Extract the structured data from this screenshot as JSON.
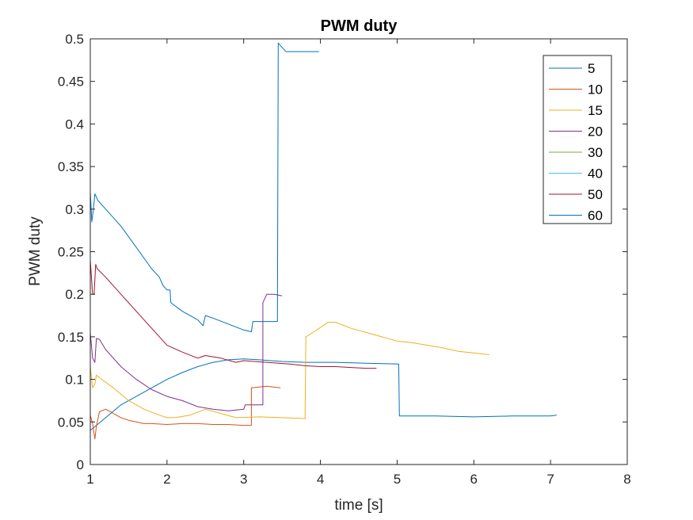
{
  "chart_data": {
    "type": "line",
    "title": "PWM duty",
    "xlabel": "time [s]",
    "ylabel": "PWM duty",
    "xlim": [
      1,
      8
    ],
    "ylim": [
      0,
      0.5
    ],
    "xticks": [
      1,
      2,
      3,
      4,
      5,
      6,
      7,
      8
    ],
    "xtick_labels": [
      "1",
      "2",
      "3",
      "4",
      "5",
      "6",
      "7",
      "8"
    ],
    "yticks": [
      0,
      0.05,
      0.1,
      0.15,
      0.2,
      0.25,
      0.3,
      0.35,
      0.4,
      0.45,
      0.5
    ],
    "ytick_labels": [
      "0",
      "0.05",
      "0.1",
      "0.15",
      "0.2",
      "0.25",
      "0.3",
      "0.35",
      "0.4",
      "0.45",
      "0.5"
    ],
    "grid": false,
    "legend_position": "top-right",
    "series": [
      {
        "name": "5",
        "color": "#0072BD",
        "points": [
          [
            1.0,
            0.04
          ],
          [
            1.2,
            0.055
          ],
          [
            1.4,
            0.07
          ],
          [
            1.6,
            0.08
          ],
          [
            1.8,
            0.09
          ],
          [
            2.0,
            0.1
          ],
          [
            2.2,
            0.108
          ],
          [
            2.4,
            0.115
          ],
          [
            2.6,
            0.12
          ],
          [
            2.8,
            0.123
          ],
          [
            3.0,
            0.124
          ],
          [
            3.2,
            0.123
          ],
          [
            3.5,
            0.121
          ],
          [
            3.8,
            0.12
          ],
          [
            4.2,
            0.12
          ],
          [
            4.6,
            0.119
          ],
          [
            5.02,
            0.118
          ],
          [
            5.03,
            0.057
          ],
          [
            5.5,
            0.057
          ],
          [
            6.0,
            0.056
          ],
          [
            6.5,
            0.057
          ],
          [
            7.0,
            0.057
          ],
          [
            7.08,
            0.058
          ]
        ]
      },
      {
        "name": "10",
        "color": "#D95319",
        "points": [
          [
            1.0,
            0.058
          ],
          [
            1.03,
            0.048
          ],
          [
            1.06,
            0.03
          ],
          [
            1.08,
            0.045
          ],
          [
            1.12,
            0.062
          ],
          [
            1.2,
            0.065
          ],
          [
            1.3,
            0.06
          ],
          [
            1.4,
            0.055
          ],
          [
            1.5,
            0.052
          ],
          [
            1.6,
            0.05
          ],
          [
            1.7,
            0.048
          ],
          [
            1.8,
            0.048
          ],
          [
            2.0,
            0.047
          ],
          [
            2.2,
            0.048
          ],
          [
            2.4,
            0.048
          ],
          [
            2.6,
            0.047
          ],
          [
            2.8,
            0.047
          ],
          [
            3.0,
            0.046
          ],
          [
            3.1,
            0.046
          ],
          [
            3.1,
            0.09
          ],
          [
            3.3,
            0.092
          ],
          [
            3.48,
            0.09
          ]
        ]
      },
      {
        "name": "15",
        "color": "#EDB120",
        "points": [
          [
            1.0,
            0.115
          ],
          [
            1.03,
            0.09
          ],
          [
            1.06,
            0.095
          ],
          [
            1.08,
            0.105
          ],
          [
            1.15,
            0.1
          ],
          [
            1.3,
            0.09
          ],
          [
            1.5,
            0.075
          ],
          [
            1.7,
            0.065
          ],
          [
            1.9,
            0.058
          ],
          [
            2.0,
            0.055
          ],
          [
            2.1,
            0.055
          ],
          [
            2.3,
            0.058
          ],
          [
            2.5,
            0.065
          ],
          [
            2.7,
            0.06
          ],
          [
            2.9,
            0.055
          ],
          [
            3.2,
            0.056
          ],
          [
            3.5,
            0.055
          ],
          [
            3.8,
            0.054
          ],
          [
            3.81,
            0.15
          ],
          [
            3.9,
            0.155
          ],
          [
            4.1,
            0.167
          ],
          [
            4.2,
            0.167
          ],
          [
            4.4,
            0.16
          ],
          [
            4.6,
            0.155
          ],
          [
            4.8,
            0.15
          ],
          [
            5.0,
            0.145
          ],
          [
            5.2,
            0.143
          ],
          [
            5.4,
            0.14
          ],
          [
            5.6,
            0.137
          ],
          [
            5.8,
            0.133
          ],
          [
            6.0,
            0.131
          ],
          [
            6.2,
            0.129
          ]
        ]
      },
      {
        "name": "20",
        "color": "#7E2F8E",
        "points": [
          [
            1.0,
            0.155
          ],
          [
            1.03,
            0.125
          ],
          [
            1.06,
            0.12
          ],
          [
            1.08,
            0.148
          ],
          [
            1.12,
            0.147
          ],
          [
            1.2,
            0.135
          ],
          [
            1.3,
            0.125
          ],
          [
            1.4,
            0.115
          ],
          [
            1.6,
            0.1
          ],
          [
            1.8,
            0.088
          ],
          [
            2.0,
            0.08
          ],
          [
            2.2,
            0.075
          ],
          [
            2.4,
            0.068
          ],
          [
            2.6,
            0.065
          ],
          [
            2.8,
            0.063
          ],
          [
            3.0,
            0.065
          ],
          [
            3.02,
            0.07
          ],
          [
            3.25,
            0.07
          ],
          [
            3.25,
            0.19
          ],
          [
            3.3,
            0.2
          ],
          [
            3.4,
            0.2
          ],
          [
            3.5,
            0.198
          ]
        ]
      },
      {
        "name": "30",
        "color": "#77AC30",
        "points": []
      },
      {
        "name": "40",
        "color": "#4DBEEE",
        "points": []
      },
      {
        "name": "50",
        "color": "#A2142F",
        "points": [
          [
            1.0,
            0.24
          ],
          [
            1.03,
            0.2
          ],
          [
            1.05,
            0.2
          ],
          [
            1.07,
            0.235
          ],
          [
            1.09,
            0.23
          ],
          [
            1.2,
            0.22
          ],
          [
            1.4,
            0.2
          ],
          [
            1.6,
            0.18
          ],
          [
            1.8,
            0.16
          ],
          [
            2.0,
            0.14
          ],
          [
            2.2,
            0.132
          ],
          [
            2.4,
            0.125
          ],
          [
            2.5,
            0.128
          ],
          [
            2.7,
            0.125
          ],
          [
            2.9,
            0.12
          ],
          [
            3.0,
            0.122
          ],
          [
            3.3,
            0.12
          ],
          [
            3.6,
            0.118
          ],
          [
            3.8,
            0.116
          ],
          [
            4.0,
            0.115
          ],
          [
            4.2,
            0.115
          ],
          [
            4.4,
            0.114
          ],
          [
            4.6,
            0.113
          ],
          [
            4.73,
            0.113
          ]
        ]
      },
      {
        "name": "60",
        "color": "#0072BD",
        "points": [
          [
            1.0,
            0.32
          ],
          [
            1.02,
            0.285
          ],
          [
            1.04,
            0.3
          ],
          [
            1.06,
            0.318
          ],
          [
            1.1,
            0.31
          ],
          [
            1.2,
            0.3
          ],
          [
            1.4,
            0.28
          ],
          [
            1.6,
            0.255
          ],
          [
            1.8,
            0.23
          ],
          [
            1.9,
            0.22
          ],
          [
            1.95,
            0.21
          ],
          [
            2.0,
            0.205
          ],
          [
            2.04,
            0.205
          ],
          [
            2.05,
            0.19
          ],
          [
            2.2,
            0.18
          ],
          [
            2.4,
            0.17
          ],
          [
            2.47,
            0.163
          ],
          [
            2.5,
            0.175
          ],
          [
            2.6,
            0.172
          ],
          [
            2.8,
            0.165
          ],
          [
            3.0,
            0.158
          ],
          [
            3.1,
            0.156
          ],
          [
            3.12,
            0.168
          ],
          [
            3.44,
            0.168
          ],
          [
            3.45,
            0.495
          ],
          [
            3.5,
            0.49
          ],
          [
            3.55,
            0.485
          ],
          [
            3.7,
            0.485
          ],
          [
            3.98,
            0.485
          ]
        ]
      }
    ]
  }
}
